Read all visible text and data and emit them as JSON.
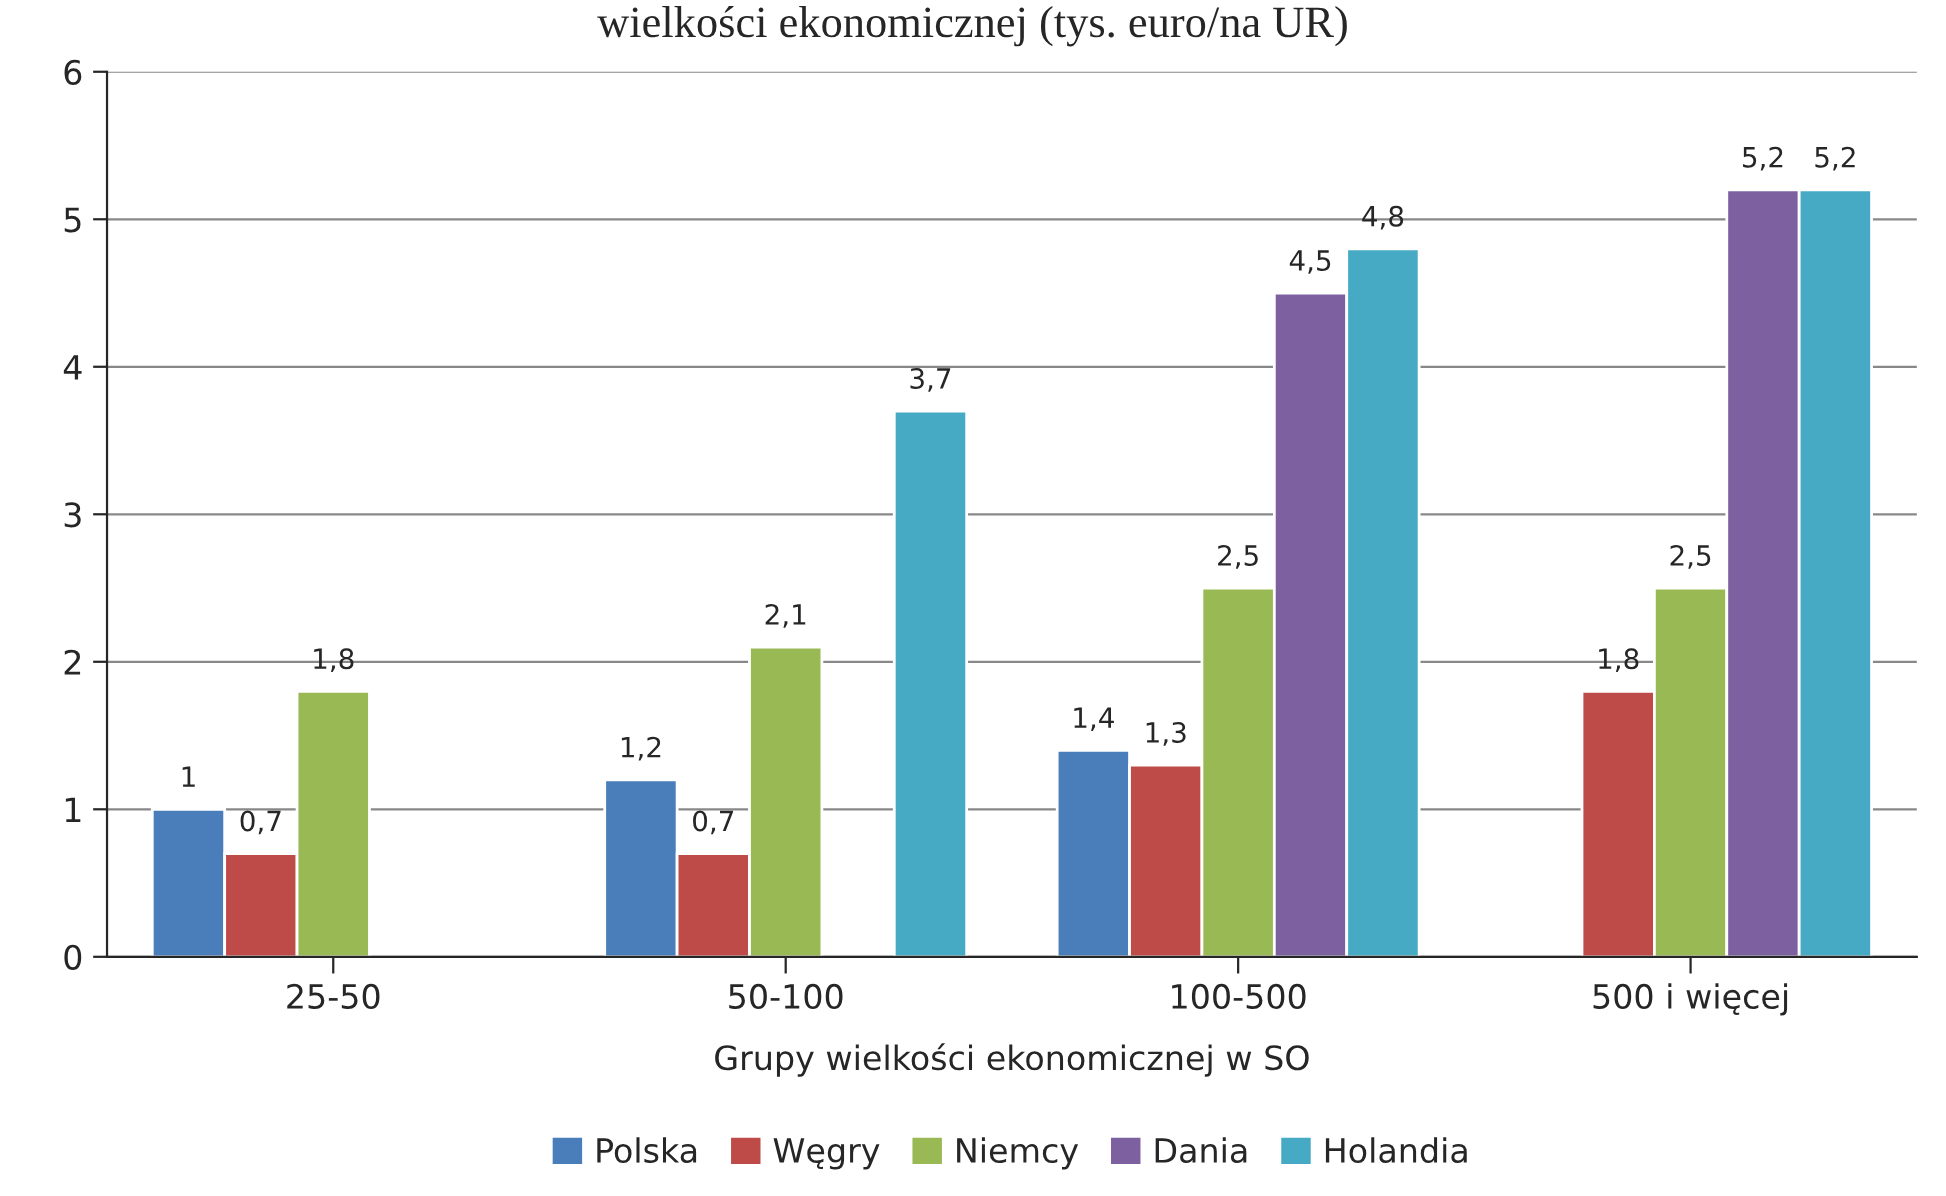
{
  "chart_data": {
    "type": "bar",
    "title": "wielkości ekonomicznej (tys. euro/na UR)",
    "xlabel": "Grupy wielkości ekonomicznej w SO",
    "categories": [
      "25-50",
      "50-100",
      "100-500",
      "500 i więcej"
    ],
    "series": [
      {
        "name": "Polska",
        "color": "#4a7ebb",
        "values": [
          1,
          1.2,
          1.4,
          null
        ],
        "value_labels": [
          "1",
          "1,2",
          "1,4",
          null
        ]
      },
      {
        "name": "Węgry",
        "color": "#be4b48",
        "values": [
          0.7,
          0.7,
          1.3,
          1.8
        ],
        "value_labels": [
          "0,7",
          "0,7",
          "1,3",
          "1,8"
        ]
      },
      {
        "name": "Niemcy",
        "color": "#98b954",
        "values": [
          1.8,
          2.1,
          2.5,
          2.5
        ],
        "value_labels": [
          "1,8",
          "2,1",
          "2,5",
          "2,5"
        ]
      },
      {
        "name": "Dania",
        "color": "#7d60a0",
        "values": [
          null,
          null,
          4.5,
          5.2
        ],
        "value_labels": [
          null,
          null,
          "4,5",
          "5,2"
        ]
      },
      {
        "name": "Holandia",
        "color": "#46aac5",
        "values": [
          null,
          3.7,
          4.8,
          5.2
        ],
        "value_labels": [
          null,
          "3,7",
          "4,8",
          "5,2"
        ]
      }
    ],
    "ylim": [
      0,
      6
    ],
    "yticks": [
      0,
      1,
      2,
      3,
      4,
      5,
      6
    ],
    "grid": "y",
    "legend": "bottom"
  }
}
